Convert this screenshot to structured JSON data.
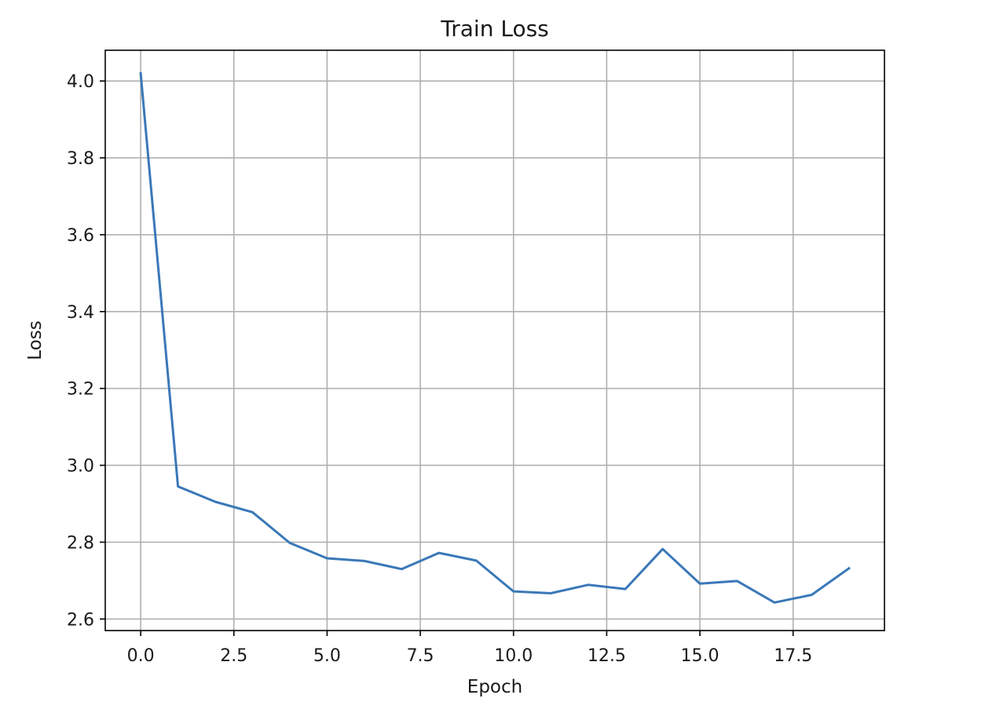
{
  "chart_data": {
    "type": "line",
    "title": "Train Loss",
    "xlabel": "Epoch",
    "ylabel": "Loss",
    "xlim": [
      -0.95,
      19.95
    ],
    "ylim": [
      2.57,
      4.08
    ],
    "grid": true,
    "x_ticks": [
      0.0,
      2.5,
      5.0,
      7.5,
      10.0,
      12.5,
      15.0,
      17.5
    ],
    "x_tick_labels": [
      "0.0",
      "2.5",
      "5.0",
      "7.5",
      "10.0",
      "12.5",
      "15.0",
      "17.5"
    ],
    "y_ticks": [
      2.6,
      2.8,
      3.0,
      3.2,
      3.4,
      3.6,
      3.8,
      4.0
    ],
    "y_tick_labels": [
      "2.6",
      "2.8",
      "3.0",
      "3.2",
      "3.4",
      "3.6",
      "3.8",
      "4.0"
    ],
    "series": [
      {
        "color": "#3a78b8",
        "x": [
          0,
          1,
          2,
          3,
          4,
          5,
          6,
          7,
          8,
          9,
          10,
          11,
          12,
          13,
          14,
          15,
          16,
          17,
          18,
          19
        ],
        "values": [
          4.02,
          2.945,
          2.905,
          2.878,
          2.798,
          2.758,
          2.751,
          2.73,
          2.772,
          2.752,
          2.672,
          2.667,
          2.689,
          2.678,
          2.782,
          2.692,
          2.699,
          2.643,
          2.663,
          2.732
        ]
      }
    ]
  }
}
